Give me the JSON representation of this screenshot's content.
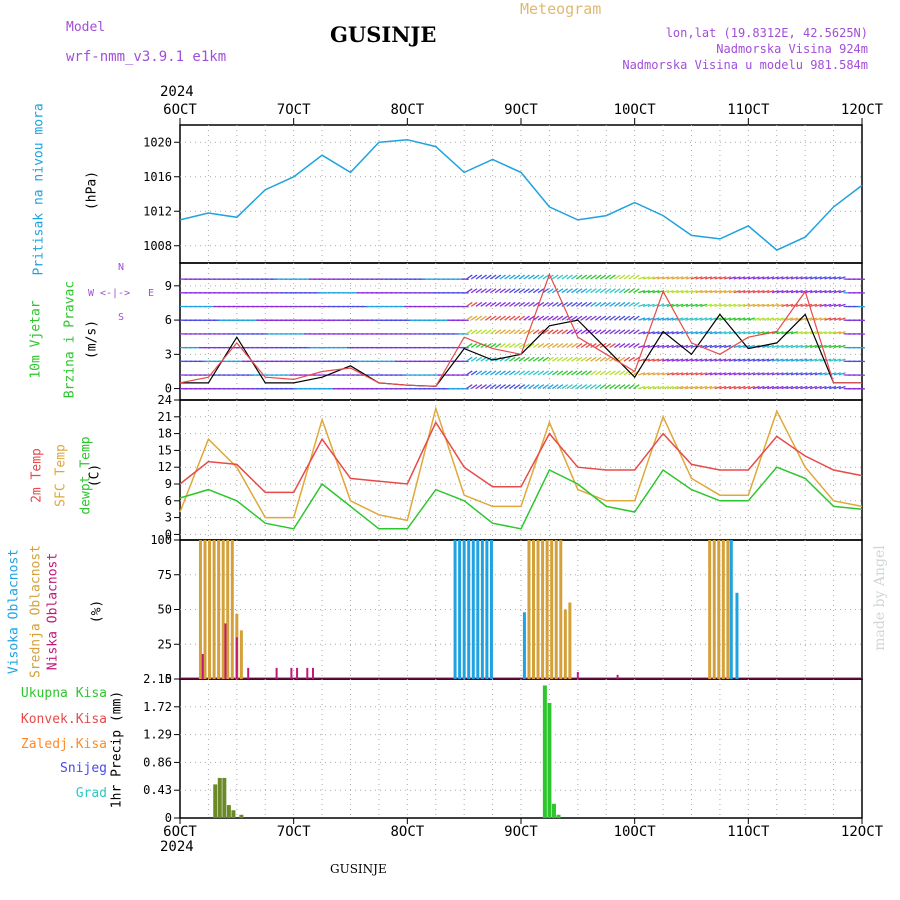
{
  "header": {
    "model_label": "Model",
    "model_name": "wrf-nmm_v3.9.1 e1km",
    "station": "GUSINJE",
    "title": "Meteogram",
    "lonlat": "lon,lat (19.8312E, 42.5625N)",
    "elevation": "Nadmorska Visina 924m",
    "model_elevation": "Nadmorska Visina u modelu 981.584m",
    "year_top": "2024",
    "year_bottom": "2024",
    "footer_station": "GUSINJE",
    "credit": "made by Angel"
  },
  "colors": {
    "pressure": "#1fa2e0",
    "temp2m": "#e84a4a",
    "sfc": "#e0a83a",
    "dew": "#2ec62e",
    "high": "#1fa2e0",
    "mid": "#d4a03a",
    "low": "#c0187a",
    "total": "#2ec62e",
    "conv": "#e84a4a",
    "zaledj": "#ff8a2a",
    "snow": "#4a4ae8",
    "grad": "#2ec6c6",
    "model": "#a24ed8",
    "title": "#e0b870"
  },
  "x_axis": {
    "tick_labels": [
      "6OCT",
      "7OCT",
      "8OCT",
      "9OCT",
      "10OCT",
      "11OCT",
      "12OCT"
    ],
    "range_days": [
      6,
      12
    ]
  },
  "labels": {
    "pressure": [
      "Pritisak na nivou mora",
      "(hPa)"
    ],
    "wind": [
      "10m Vjetar",
      "Brzina i Pravac",
      "(m/s)"
    ],
    "temp": [
      "2m Temp",
      "SFC Temp",
      "dewpt Temp",
      "(C)"
    ],
    "cloud": [
      "Visoka Oblacnost",
      "Srednja Oblacnost",
      "Niska Oblacnost",
      "(%)"
    ],
    "compass": [
      "N",
      "W",
      "E",
      "S"
    ],
    "precip_axis": "1hr Precip (mm)",
    "precip_legend": [
      "Ukupna Kisa",
      "Konvek.Kisa",
      "Zaledj.Kisa",
      "Snijeg",
      "Grad"
    ]
  },
  "chart_data": [
    {
      "type": "line",
      "name": "pressure",
      "ylabel": "(hPa)",
      "ylim": [
        1006,
        1022
      ],
      "yticks": [
        1008,
        1012,
        1016,
        1020
      ],
      "grid": true,
      "x": [
        6.0,
        6.25,
        6.5,
        6.75,
        7.0,
        7.25,
        7.5,
        7.75,
        8.0,
        8.25,
        8.5,
        8.75,
        9.0,
        9.25,
        9.5,
        9.75,
        10.0,
        10.25,
        10.5,
        10.75,
        11.0,
        11.25,
        11.5,
        11.75,
        12.0
      ],
      "series": [
        {
          "values": [
            1011.0,
            1011.8,
            1011.3,
            1014.5,
            1016.0,
            1018.5,
            1016.5,
            1020.0,
            1020.3,
            1019.5,
            1016.5,
            1018.0,
            1016.5,
            1012.5,
            1011.0,
            1011.5,
            1013.0,
            1011.5,
            1009.2,
            1008.8,
            1010.3,
            1007.5,
            1009.0,
            1012.5,
            1015.0
          ]
        }
      ]
    },
    {
      "type": "line",
      "name": "wind",
      "ylabel": "(m/s)",
      "ylim": [
        -1,
        11
      ],
      "yticks": [
        0,
        3,
        6,
        9
      ],
      "grid": true,
      "x": [
        6.0,
        6.25,
        6.5,
        6.75,
        7.0,
        7.25,
        7.5,
        7.75,
        8.0,
        8.25,
        8.5,
        8.75,
        9.0,
        9.25,
        9.5,
        9.75,
        10.0,
        10.25,
        10.5,
        10.75,
        11.0,
        11.25,
        11.5,
        11.75,
        12.0
      ],
      "series": [
        {
          "values": [
            0.5,
            1.0,
            4.0,
            1.0,
            0.8,
            1.5,
            1.8,
            0.5,
            0.3,
            0.2,
            4.5,
            3.5,
            3.0,
            10.0,
            4.5,
            3.0,
            1.5,
            8.5,
            4.0,
            3.0,
            4.5,
            5.0,
            8.5,
            0.5,
            0.5
          ]
        },
        {
          "values": [
            0.5,
            0.5,
            4.5,
            0.5,
            0.5,
            1.0,
            2.0,
            0.5,
            0.3,
            0.2,
            3.5,
            2.5,
            3.0,
            5.5,
            6.0,
            3.5,
            1.0,
            5.0,
            3.0,
            6.5,
            3.5,
            4.0,
            6.5,
            0.5,
            0.5
          ]
        }
      ]
    },
    {
      "type": "line",
      "name": "temperature",
      "ylabel": "(C)",
      "ylim": [
        -1,
        24
      ],
      "yticks": [
        0,
        3,
        6,
        9,
        12,
        15,
        18,
        21,
        24
      ],
      "grid": true,
      "x": [
        6.0,
        6.25,
        6.5,
        6.75,
        7.0,
        7.25,
        7.5,
        7.75,
        8.0,
        8.25,
        8.5,
        8.75,
        9.0,
        9.25,
        9.5,
        9.75,
        10.0,
        10.25,
        10.5,
        10.75,
        11.0,
        11.25,
        11.5,
        11.75,
        12.0
      ],
      "series": [
        {
          "name": "2m Temp",
          "values": [
            9.0,
            13.0,
            12.5,
            7.5,
            7.5,
            17.0,
            10.0,
            9.5,
            9.0,
            20.0,
            12.0,
            8.5,
            8.5,
            18.0,
            12.0,
            11.5,
            11.5,
            18.0,
            12.5,
            11.5,
            11.5,
            17.5,
            14.0,
            11.5,
            10.5
          ]
        },
        {
          "name": "SFC Temp",
          "values": [
            4.0,
            17.0,
            12.0,
            3.0,
            3.0,
            20.5,
            6.0,
            3.5,
            2.5,
            22.5,
            7.0,
            5.0,
            5.0,
            20.0,
            8.0,
            6.0,
            6.0,
            21.0,
            10.0,
            7.0,
            7.0,
            22.0,
            12.0,
            6.0,
            5.0
          ]
        },
        {
          "name": "dewpt Temp",
          "values": [
            6.5,
            8.0,
            6.0,
            2.0,
            1.0,
            9.0,
            5.0,
            1.0,
            1.0,
            8.0,
            6.0,
            2.0,
            1.0,
            11.5,
            9.0,
            5.0,
            4.0,
            11.5,
            8.0,
            6.0,
            6.0,
            12.0,
            10.0,
            5.0,
            4.5
          ]
        }
      ]
    },
    {
      "type": "bar",
      "name": "cloud",
      "ylabel": "(%)",
      "ylim": [
        0,
        100
      ],
      "yticks": [
        0,
        25,
        50,
        75,
        100
      ],
      "grid": true,
      "series": [
        {
          "name": "Visoka Oblacnost",
          "x": [
            8.42,
            8.46,
            8.5,
            8.54,
            8.58,
            8.62,
            8.66,
            8.7,
            8.74,
            9.03,
            10.85,
            10.9
          ],
          "values": [
            100,
            100,
            100,
            100,
            100,
            100,
            100,
            100,
            100,
            48,
            100,
            62
          ]
        },
        {
          "name": "Srednja Oblacnost",
          "x": [
            6.18,
            6.22,
            6.26,
            6.3,
            6.34,
            6.38,
            6.42,
            6.46,
            6.5,
            6.54,
            9.07,
            9.11,
            9.15,
            9.19,
            9.23,
            9.27,
            9.31,
            9.35,
            9.39,
            9.43,
            10.66,
            10.7,
            10.74,
            10.78,
            10.82
          ],
          "values": [
            100,
            100,
            100,
            100,
            100,
            100,
            100,
            100,
            47,
            35,
            100,
            100,
            100,
            100,
            100,
            100,
            100,
            100,
            50,
            55,
            100,
            100,
            100,
            100,
            100
          ]
        },
        {
          "name": "Niska Oblacnost",
          "x": [
            6.2,
            6.4,
            6.5,
            6.6,
            6.85,
            6.98,
            7.03,
            7.12,
            7.17,
            9.5,
            9.85
          ],
          "values": [
            18,
            40,
            30,
            8,
            8,
            8,
            8,
            8,
            8,
            5,
            3
          ]
        }
      ]
    },
    {
      "type": "bar",
      "name": "precipitation",
      "ylabel": "1hr Precip (mm)",
      "ylim": [
        0,
        2.15
      ],
      "yticks": [
        0,
        0.43,
        0.86,
        1.29,
        1.72,
        2.15
      ],
      "grid": true,
      "series": [
        {
          "name": "Ukupna Kisa",
          "x": [
            6.31,
            6.35,
            6.39,
            6.43,
            6.47,
            6.54,
            9.21,
            9.25,
            9.29,
            9.33
          ],
          "values": [
            0.52,
            0.62,
            0.62,
            0.2,
            0.12,
            0.05,
            2.05,
            1.78,
            0.22,
            0.05
          ]
        }
      ]
    }
  ]
}
